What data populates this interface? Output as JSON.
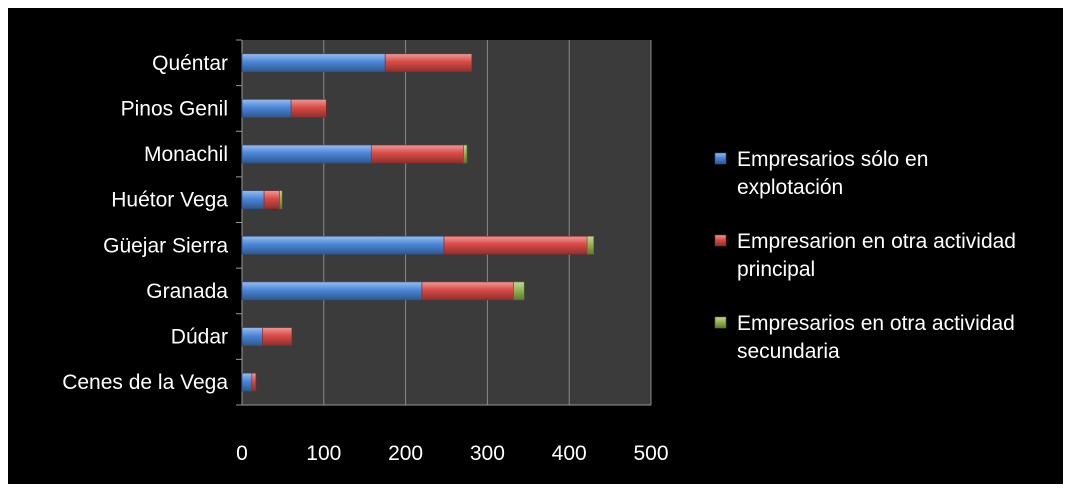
{
  "chart_data": {
    "type": "bar",
    "orientation": "horizontal",
    "stacked": true,
    "categories": [
      "Quéntar",
      "Pinos Genil",
      "Monachil",
      "Huétor Vega",
      "Güejar Sierra",
      "Granada",
      "Dúdar",
      "Cenes de la Vega"
    ],
    "series": [
      {
        "name": "Empresarios sólo en explotación",
        "legend_lines": [
          "Empresarios sólo en",
          "explotación"
        ],
        "color": "#4a86d8",
        "values": [
          175,
          60,
          158,
          27,
          247,
          220,
          25,
          12
        ]
      },
      {
        "name": "Empresarion en otra actividad principal",
        "legend_lines": [
          "Empresarion en otra actividad",
          "principal"
        ],
        "color": "#d94a46",
        "values": [
          106,
          43,
          113,
          19,
          175,
          112,
          36,
          5
        ]
      },
      {
        "name": "Empresarios en otra actividad secundaria",
        "legend_lines": [
          "Empresarios en otra actividad",
          "secundaria"
        ],
        "color": "#93b552",
        "values": [
          0,
          0,
          4,
          3,
          8,
          13,
          0,
          0
        ]
      }
    ],
    "xlim": [
      0,
      500
    ],
    "x_ticks": [
      0,
      100,
      200,
      300,
      400,
      500
    ],
    "x_tick_labels": [
      "0",
      "100",
      "200",
      "300",
      "400",
      "500"
    ],
    "grid": "vertical",
    "legend_position": "right",
    "plot_background": "#3b3b3b",
    "chart_background": "#000000"
  }
}
